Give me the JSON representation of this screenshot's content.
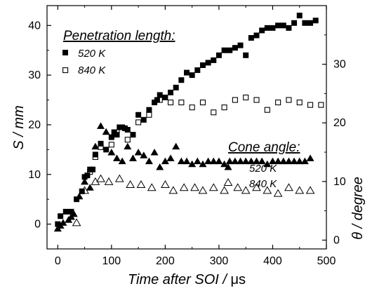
{
  "chart_data": [
    {
      "type": "scatter",
      "title": "",
      "xlabel_text": "Time after SOI / ",
      "xlabel_unit": "μs",
      "ylabel": "S / mm",
      "xlim": [
        -20,
        500
      ],
      "ylim": [
        -5,
        44
      ],
      "x_ticks": [
        0,
        100,
        200,
        300,
        400,
        500
      ],
      "y_ticks": [
        0,
        10,
        20,
        30,
        40
      ],
      "grid": false,
      "legend": {
        "title": "Penetration length:",
        "placement": "top-left",
        "entries": [
          "520 K",
          "840 K"
        ]
      },
      "series": [
        {
          "name": "520 K",
          "marker": "filled-square",
          "color": "#000000",
          "points": [
            [
              0,
              0
            ],
            [
              5,
              1.6
            ],
            [
              15,
              2.5
            ],
            [
              25,
              2.5
            ],
            [
              35,
              5
            ],
            [
              45,
              6.6
            ],
            [
              50,
              9.5
            ],
            [
              55,
              9.8
            ],
            [
              60,
              11
            ],
            [
              65,
              11
            ],
            [
              70,
              14
            ],
            [
              80,
              16.2
            ],
            [
              90,
              15
            ],
            [
              100,
              17.5
            ],
            [
              105,
              18.5
            ],
            [
              110,
              18
            ],
            [
              115,
              19.5
            ],
            [
              120,
              19.5
            ],
            [
              125,
              19.3
            ],
            [
              130,
              19
            ],
            [
              140,
              18
            ],
            [
              150,
              22
            ],
            [
              160,
              21
            ],
            [
              170,
              23
            ],
            [
              180,
              24.5
            ],
            [
              185,
              25
            ],
            [
              190,
              26
            ],
            [
              200,
              25.5
            ],
            [
              210,
              26.5
            ],
            [
              220,
              27.5
            ],
            [
              230,
              29
            ],
            [
              240,
              30.5
            ],
            [
              250,
              30
            ],
            [
              260,
              31
            ],
            [
              270,
              32
            ],
            [
              280,
              32.5
            ],
            [
              290,
              33
            ],
            [
              300,
              34
            ],
            [
              310,
              35
            ],
            [
              320,
              35
            ],
            [
              330,
              35.5
            ],
            [
              340,
              36
            ],
            [
              350,
              34
            ],
            [
              360,
              37.5
            ],
            [
              370,
              38
            ],
            [
              380,
              39
            ],
            [
              390,
              39.5
            ],
            [
              400,
              39.5
            ],
            [
              410,
              40
            ],
            [
              420,
              40
            ],
            [
              430,
              39.5
            ],
            [
              440,
              40.5
            ],
            [
              450,
              42
            ],
            [
              460,
              40.5
            ],
            [
              470,
              40.5
            ],
            [
              480,
              41
            ]
          ]
        },
        {
          "name": "840 K",
          "marker": "open-square",
          "color": "#000000",
          "points": [
            [
              60,
              10.5
            ],
            [
              70,
              13.5
            ],
            [
              80,
              15.5
            ],
            [
              100,
              16
            ],
            [
              110,
              18.5
            ],
            [
              130,
              17
            ],
            [
              150,
              20.5
            ],
            [
              170,
              22
            ],
            [
              190,
              25
            ],
            [
              210,
              24.5
            ],
            [
              230,
              24.5
            ],
            [
              250,
              23.5
            ],
            [
              270,
              24.5
            ],
            [
              290,
              22.5
            ],
            [
              310,
              23.5
            ],
            [
              330,
              25
            ],
            [
              350,
              25.5
            ],
            [
              370,
              25
            ],
            [
              390,
              23
            ],
            [
              410,
              24.5
            ],
            [
              430,
              25
            ],
            [
              450,
              24.5
            ],
            [
              470,
              24
            ],
            [
              490,
              24
            ]
          ]
        }
      ]
    },
    {
      "type": "scatter",
      "title": "",
      "ylabel": "θ / degree",
      "ylim": [
        -1.5,
        40
      ],
      "y_ticks": [
        0,
        10,
        20,
        30
      ],
      "axis_side": "right",
      "legend": {
        "title": "Cone angle:",
        "placement": "middle-right",
        "entries": [
          "520 K",
          "840 K"
        ]
      },
      "series": [
        {
          "name": "520 K",
          "marker": "filled-triangle",
          "color": "#000000",
          "points": [
            [
              0,
              2
            ],
            [
              5,
              2.5
            ],
            [
              10,
              3
            ],
            [
              20,
              3.5
            ],
            [
              25,
              4
            ],
            [
              30,
              4.5
            ],
            [
              40,
              7.5
            ],
            [
              50,
              10
            ],
            [
              60,
              9
            ],
            [
              70,
              16
            ],
            [
              80,
              19.5
            ],
            [
              90,
              18.5
            ],
            [
              100,
              15
            ],
            [
              110,
              14
            ],
            [
              120,
              13.5
            ],
            [
              130,
              16
            ],
            [
              140,
              14
            ],
            [
              150,
              15
            ],
            [
              160,
              14.5
            ],
            [
              170,
              13.5
            ],
            [
              180,
              15
            ],
            [
              190,
              12.5
            ],
            [
              200,
              13.5
            ],
            [
              210,
              14
            ],
            [
              220,
              16
            ],
            [
              230,
              13.5
            ],
            [
              240,
              13.5
            ],
            [
              250,
              13
            ],
            [
              260,
              13.5
            ],
            [
              270,
              13
            ],
            [
              280,
              13.5
            ],
            [
              290,
              13.5
            ],
            [
              300,
              13.5
            ],
            [
              310,
              13
            ],
            [
              320,
              13.5
            ],
            [
              330,
              13.5
            ],
            [
              340,
              13.5
            ],
            [
              350,
              13.5
            ],
            [
              360,
              13.5
            ],
            [
              370,
              13.5
            ],
            [
              380,
              13.5
            ],
            [
              390,
              13
            ],
            [
              400,
              13.5
            ],
            [
              410,
              13.5
            ],
            [
              420,
              13.5
            ],
            [
              430,
              13.5
            ],
            [
              440,
              13.5
            ],
            [
              450,
              13.5
            ],
            [
              460,
              13.5
            ],
            [
              470,
              14
            ]
          ]
        },
        {
          "name": "840 K",
          "marker": "open-triangle",
          "color": "#000000",
          "points": [
            [
              35,
              3
            ],
            [
              50,
              8.5
            ],
            [
              70,
              10
            ],
            [
              80,
              10.5
            ],
            [
              95,
              10
            ],
            [
              115,
              10.5
            ],
            [
              135,
              9.5
            ],
            [
              155,
              9.5
            ],
            [
              175,
              9
            ],
            [
              200,
              9.5
            ],
            [
              215,
              8.5
            ],
            [
              235,
              9
            ],
            [
              255,
              9
            ],
            [
              270,
              8.5
            ],
            [
              290,
              9
            ],
            [
              310,
              8.5
            ],
            [
              335,
              9
            ],
            [
              350,
              8.5
            ],
            [
              370,
              9
            ],
            [
              390,
              8.5
            ],
            [
              410,
              8
            ],
            [
              430,
              9
            ],
            [
              450,
              8.5
            ],
            [
              470,
              8.5
            ]
          ]
        }
      ]
    }
  ]
}
